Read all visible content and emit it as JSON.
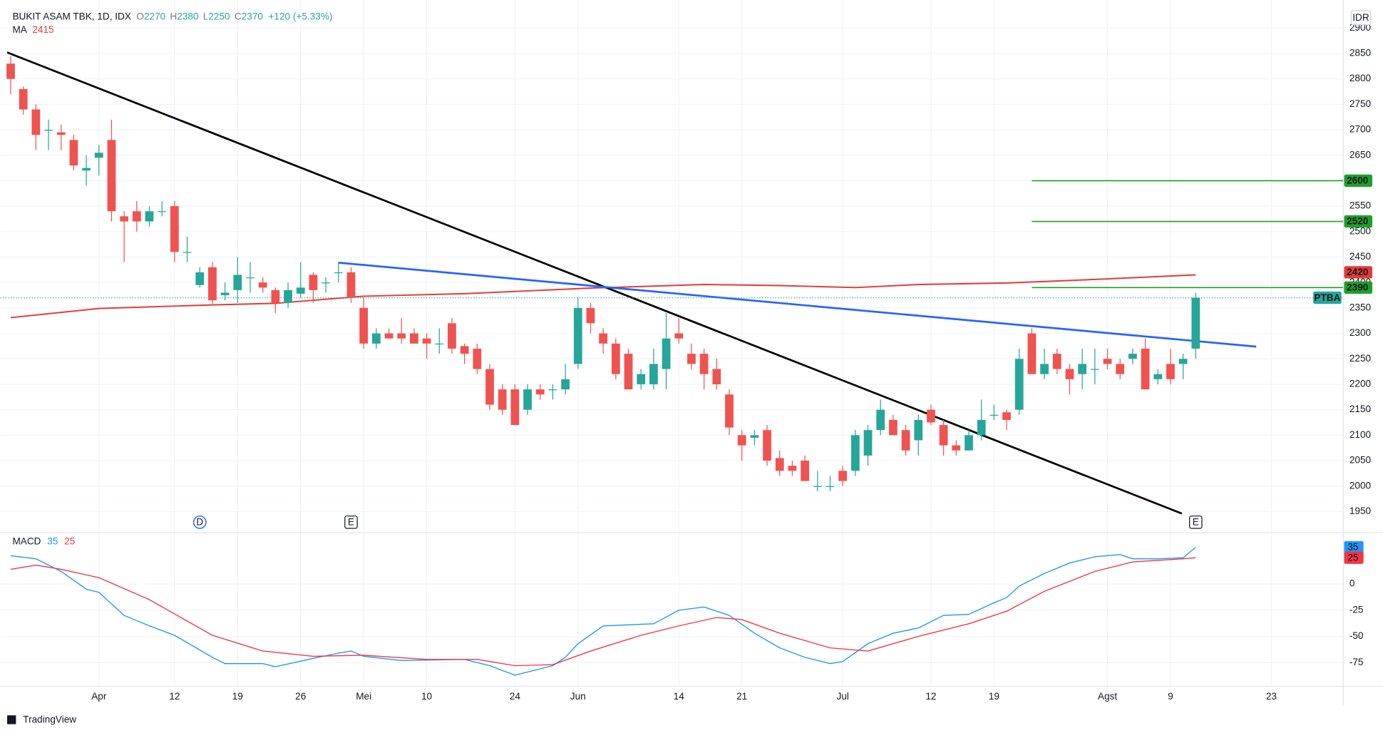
{
  "chart_data": {
    "type": "candlestick",
    "symbol": "BUKIT ASAM TBK, 1D, IDX",
    "ohlc_labels": [
      "O",
      "H",
      "L",
      "C"
    ],
    "change": "+120 (+5.33%)",
    "currency": "IDR",
    "last_tag": "PTBA",
    "branding": "TradingView",
    "up_color": "#26a69a",
    "down_color": "#ef5350",
    "grid": true,
    "xlim": [
      -0.84,
      105.7
    ],
    "ylim": [
      1910,
      2955
    ],
    "xticks": [
      {
        "value": 7,
        "label": "Apr"
      },
      {
        "value": 13,
        "label": "12"
      },
      {
        "value": 18,
        "label": "19"
      },
      {
        "value": 23,
        "label": "26"
      },
      {
        "value": 28,
        "label": "Mei"
      },
      {
        "value": 33,
        "label": "10"
      },
      {
        "value": 40,
        "label": "24"
      },
      {
        "value": 45,
        "label": "Jun"
      },
      {
        "value": 53,
        "label": "14"
      },
      {
        "value": 58,
        "label": "21"
      },
      {
        "value": 66,
        "label": "Jul"
      },
      {
        "value": 73,
        "label": "12"
      },
      {
        "value": 78,
        "label": "19"
      },
      {
        "value": 87,
        "label": "Agst"
      },
      {
        "value": 92,
        "label": "9"
      },
      {
        "value": 100,
        "label": "23"
      }
    ],
    "yticks": [
      1950,
      2000,
      2050,
      2100,
      2150,
      2200,
      2250,
      2300,
      2350,
      2400,
      2450,
      2500,
      2550,
      2600,
      2650,
      2700,
      2750,
      2800,
      2850,
      2900
    ],
    "candles": {
      "open": [
        2830,
        2780,
        2740,
        2700,
        2695,
        2680,
        2620,
        2645,
        2680,
        2530,
        2540,
        2520,
        2540,
        2550,
        2460,
        2395,
        2430,
        2375,
        2385,
        2410,
        2400,
        2385,
        2360,
        2378,
        2415,
        2400,
        2420,
        2420,
        2350,
        2280,
        2300,
        2300,
        2300,
        2290,
        2280,
        2320,
        2275,
        2270,
        2230,
        2190,
        2190,
        2150,
        2190,
        2190,
        2190,
        2240,
        2350,
        2300,
        2280,
        2260,
        2200,
        2200,
        2230,
        2300,
        2260,
        2260,
        2230,
        2180,
        2100,
        2095,
        2110,
        2055,
        2040,
        2050,
        2000,
        2000,
        2030,
        2030,
        2060,
        2110,
        2130,
        2110,
        2090,
        2150,
        2120,
        2080,
        2070,
        2100,
        2140,
        2145,
        2150,
        2300,
        2220,
        2260,
        2230,
        2220,
        2230,
        2250,
        2240,
        2250,
        2270,
        2210,
        2240,
        2240,
        2270
      ],
      "high": [
        2845,
        2785,
        2750,
        2720,
        2710,
        2690,
        2650,
        2670,
        2720,
        2540,
        2560,
        2550,
        2560,
        2560,
        2490,
        2430,
        2440,
        2400,
        2450,
        2440,
        2410,
        2390,
        2400,
        2440,
        2420,
        2410,
        2440,
        2430,
        2370,
        2310,
        2310,
        2330,
        2310,
        2300,
        2310,
        2330,
        2280,
        2280,
        2240,
        2200,
        2200,
        2200,
        2200,
        2200,
        2240,
        2370,
        2360,
        2310,
        2290,
        2270,
        2230,
        2270,
        2340,
        2330,
        2280,
        2270,
        2250,
        2190,
        2110,
        2110,
        2120,
        2070,
        2050,
        2060,
        2030,
        2020,
        2040,
        2110,
        2120,
        2170,
        2140,
        2120,
        2140,
        2160,
        2130,
        2090,
        2110,
        2170,
        2160,
        2150,
        2270,
        2310,
        2270,
        2270,
        2240,
        2270,
        2270,
        2270,
        2250,
        2270,
        2290,
        2230,
        2270,
        2260,
        2380
      ],
      "low": [
        2770,
        2730,
        2660,
        2660,
        2660,
        2620,
        2590,
        2610,
        2520,
        2440,
        2500,
        2510,
        2530,
        2440,
        2440,
        2390,
        2355,
        2365,
        2360,
        2380,
        2380,
        2340,
        2350,
        2370,
        2360,
        2380,
        2400,
        2360,
        2270,
        2270,
        2290,
        2280,
        2280,
        2250,
        2260,
        2260,
        2240,
        2220,
        2150,
        2140,
        2120,
        2140,
        2170,
        2170,
        2180,
        2230,
        2300,
        2260,
        2210,
        2190,
        2190,
        2190,
        2190,
        2280,
        2230,
        2190,
        2190,
        2100,
        2050,
        2080,
        2040,
        2020,
        2020,
        2010,
        1990,
        1990,
        2000,
        2020,
        2040,
        2100,
        2100,
        2060,
        2060,
        2120,
        2060,
        2060,
        2070,
        2090,
        2130,
        2110,
        2140,
        2220,
        2210,
        2220,
        2180,
        2190,
        2200,
        2230,
        2210,
        2240,
        2190,
        2200,
        2200,
        2210,
        2250
      ],
      "close": [
        2800,
        2740,
        2690,
        2700,
        2690,
        2630,
        2625,
        2655,
        2540,
        2520,
        2520,
        2540,
        2540,
        2460,
        2460,
        2420,
        2365,
        2380,
        2415,
        2410,
        2390,
        2360,
        2385,
        2390,
        2385,
        2400,
        2420,
        2370,
        2280,
        2300,
        2290,
        2290,
        2280,
        2280,
        2280,
        2270,
        2260,
        2230,
        2160,
        2150,
        2120,
        2190,
        2180,
        2190,
        2210,
        2350,
        2320,
        2280,
        2220,
        2190,
        2220,
        2240,
        2290,
        2290,
        2240,
        2220,
        2200,
        2115,
        2080,
        2100,
        2050,
        2030,
        2030,
        2010,
        2000,
        2000,
        2010,
        2100,
        2110,
        2150,
        2100,
        2070,
        2130,
        2125,
        2080,
        2070,
        2100,
        2130,
        2140,
        2130,
        2250,
        2220,
        2240,
        2230,
        2210,
        2240,
        2230,
        2240,
        2220,
        2260,
        2190,
        2220,
        2210,
        2250,
        2370
      ]
    },
    "ma": {
      "name": "MA",
      "color": "#e53935",
      "axis_tag": 2420,
      "x": [
        0,
        7,
        16,
        21,
        28,
        36,
        46,
        55,
        61,
        67,
        72,
        79,
        86,
        94
      ],
      "values": [
        2331,
        2349,
        2356,
        2359,
        2373,
        2378,
        2389,
        2396,
        2394,
        2390,
        2396,
        2399,
        2406,
        2415
      ]
    },
    "trendlines": [
      {
        "color": "#000000",
        "x": [
          -0.28,
          92.9
        ],
        "values": [
          2852,
          1946
        ]
      },
      {
        "color": "#2962ff",
        "x": [
          26,
          98.8
        ],
        "values": [
          2439,
          2274
        ]
      }
    ],
    "levels": [
      {
        "value": 2600,
        "from": 81,
        "color": "#1e9e2a"
      },
      {
        "value": 2520,
        "from": 81,
        "color": "#1e9e2a"
      },
      {
        "value": 2390,
        "from": 81,
        "color": "#1e9e2a"
      }
    ],
    "events": [
      {
        "x": 15,
        "label": "D",
        "shape": "circle",
        "color": "#2962ff"
      },
      {
        "x": 27,
        "label": "E",
        "shape": "square",
        "color": "#131722"
      },
      {
        "x": 94,
        "label": "E",
        "shape": "square",
        "color": "#131722"
      }
    ],
    "macd": {
      "name": "MACD",
      "ylim": [
        -97.6,
        48
      ],
      "yticks": [
        -75,
        -50,
        -25,
        0
      ],
      "series": [
        {
          "name": "MACD",
          "color": "#2196f3",
          "x": [
            0,
            2,
            4,
            6,
            7,
            9,
            11,
            13,
            16,
            17,
            20,
            21,
            24,
            26,
            27,
            28,
            31,
            36,
            38,
            40,
            43,
            44,
            45,
            47,
            49,
            51,
            53,
            55,
            57,
            59,
            61,
            63,
            65,
            66,
            68,
            70,
            72,
            74,
            76,
            78,
            79,
            80,
            82,
            84,
            86,
            88,
            89,
            91,
            93,
            94
          ],
          "values": [
            27,
            24,
            12,
            -5,
            -8,
            -30,
            -40,
            -49,
            -70,
            -76,
            -76,
            -79,
            -71,
            -66,
            -64,
            -69,
            -73,
            -72,
            -78,
            -87,
            -78,
            -70,
            -57,
            -40,
            -39,
            -38,
            -25,
            -22,
            -30,
            -47,
            -61,
            -70,
            -76,
            -74,
            -57,
            -47,
            -42,
            -30,
            -29,
            -18,
            -13,
            -2,
            10,
            20,
            26,
            28,
            24,
            24,
            25,
            35
          ]
        },
        {
          "name": "Signal",
          "color": "#f23645",
          "x": [
            0,
            2,
            4,
            7,
            11,
            16,
            20,
            24,
            28,
            33,
            37,
            40,
            43,
            46,
            50,
            53,
            56,
            58,
            61,
            65,
            68,
            72,
            76,
            79,
            82,
            86,
            89,
            93,
            94
          ],
          "values": [
            14,
            18,
            14,
            6,
            -15,
            -49,
            -64,
            -69,
            -68,
            -72,
            -72,
            -78,
            -77,
            -64,
            -49,
            -40,
            -32,
            -34,
            -47,
            -61,
            -64,
            -50,
            -38,
            -26,
            -7,
            12,
            21,
            24,
            25
          ]
        }
      ]
    }
  }
}
